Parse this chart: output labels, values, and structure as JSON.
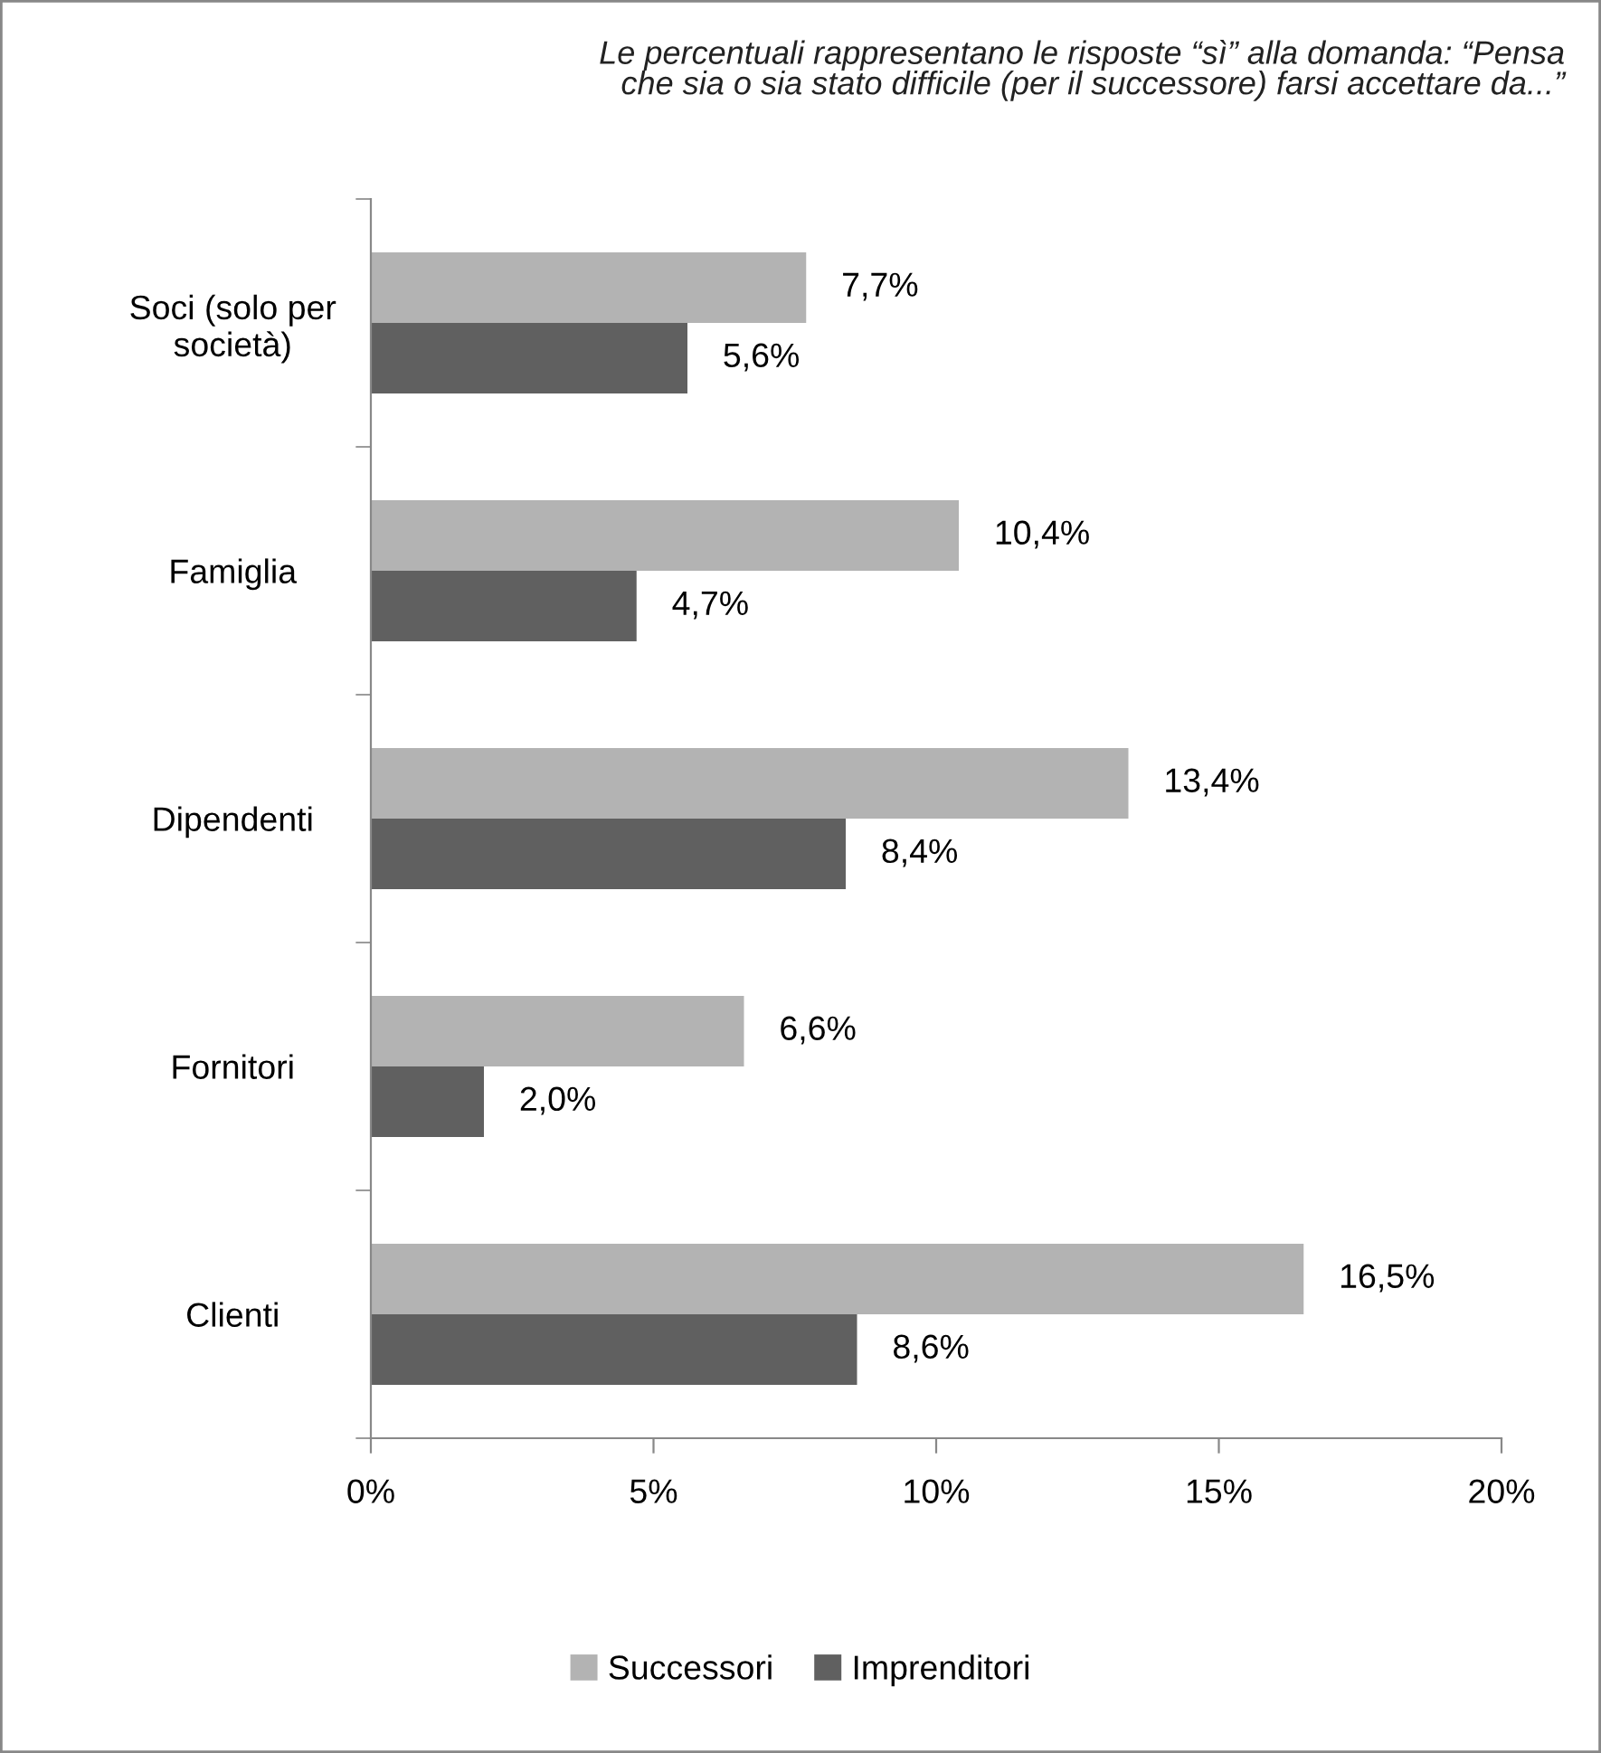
{
  "chart_data": {
    "type": "bar",
    "orientation": "horizontal",
    "title": "Le percentuali rappresentano le risposte “sì” alla domanda: “Pensa\nche sia o sia stato difficile (per il successore) farsi accettare da...”",
    "categories": [
      "Soci (solo per\nsocietà)",
      "Famiglia",
      "Dipendenti",
      "Fornitori",
      "Clienti"
    ],
    "series": [
      {
        "name": "Successori",
        "color": "#b3b3b3",
        "values": [
          7.7,
          10.4,
          13.4,
          6.6,
          16.5
        ],
        "value_labels": [
          "7,7%",
          "10,4%",
          "13,4%",
          "6,6%",
          "16,5%"
        ]
      },
      {
        "name": "Imprenditori",
        "color": "#606060",
        "values": [
          5.6,
          4.7,
          8.4,
          2.0,
          8.6
        ],
        "value_labels": [
          "5,6%",
          "4,7%",
          "8,4%",
          "2,0%",
          "8,6%"
        ]
      }
    ],
    "xlim": [
      0,
      20
    ],
    "xticks": [
      {
        "value": 0,
        "label": "0%"
      },
      {
        "value": 5,
        "label": "5%"
      },
      {
        "value": 10,
        "label": "10%"
      },
      {
        "value": 15,
        "label": "15%"
      },
      {
        "value": 20,
        "label": "20%"
      }
    ],
    "grid": false,
    "legend": "bottom"
  }
}
